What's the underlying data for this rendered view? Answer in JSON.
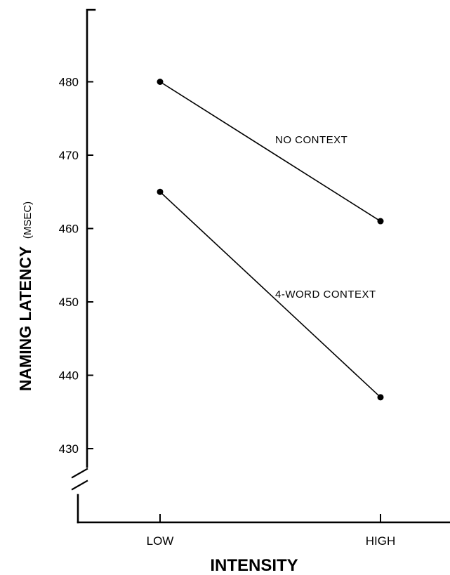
{
  "chart_data": {
    "type": "line",
    "x": [
      "LOW",
      "HIGH"
    ],
    "series": [
      {
        "name": "NO CONTEXT",
        "values": [
          480,
          461
        ]
      },
      {
        "name": "4-WORD CONTEXT",
        "values": [
          465,
          437
        ]
      }
    ],
    "xlabel": "INTENSITY",
    "ylabel": "NAMING LATENCY",
    "ylabel_unit": "(MSEC)",
    "yticks": [
      "430",
      "440",
      "450",
      "460",
      "470",
      "480"
    ],
    "ylim": [
      420,
      490
    ],
    "axis_break": true,
    "grid": false,
    "line_color": "#000000",
    "marker_color": "#000000"
  }
}
